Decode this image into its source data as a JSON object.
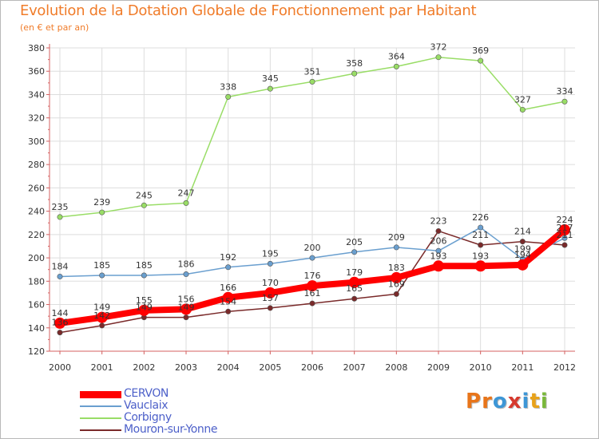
{
  "title": "Evolution de la Dotation Globale de Fonctionnement par Habitant",
  "subtitle": "(en € et par an)",
  "logo": {
    "text": "Proxiti",
    "colors": [
      "#e8751a",
      "#e8751a",
      "#3d96d6",
      "#d63a2e",
      "#3d96d6",
      "#e8a21a",
      "#7ab83a"
    ]
  },
  "colors": {
    "axis": "#d46060",
    "grid": "#dddddd",
    "label_text": "#333333"
  },
  "chart_data": {
    "type": "line",
    "title": "Evolution de la Dotation Globale de Fonctionnement par Habitant",
    "subtitle": "(en € et par an)",
    "x": [
      "2000",
      "2001",
      "2002",
      "2003",
      "2004",
      "2005",
      "2006",
      "2007",
      "2008",
      "2009",
      "2010",
      "2011",
      "2012"
    ],
    "ylim": [
      120,
      380
    ],
    "yticks": [
      120,
      140,
      160,
      180,
      200,
      220,
      240,
      260,
      280,
      300,
      320,
      340,
      360,
      380
    ],
    "grid": true,
    "legend_position": "bottom-left",
    "series": [
      {
        "name": "CERVON",
        "color": "#ff0000",
        "values": [
          144,
          149,
          155,
          156,
          166,
          170,
          176,
          179,
          183,
          193,
          193,
          194,
          224
        ],
        "labels": [
          "144",
          "149",
          "155",
          "156",
          "166",
          "170",
          "176",
          "179",
          "183",
          "193",
          "193",
          "194",
          "224"
        ]
      },
      {
        "name": "Vauclaix",
        "color": "#6a9fcf",
        "values": [
          184,
          185,
          185,
          186,
          192,
          195,
          200,
          205,
          209,
          206,
          226,
          199,
          217
        ],
        "labels": [
          "184",
          "185",
          "185",
          "186",
          "192",
          "195",
          "200",
          "205",
          "209",
          "206",
          "226",
          "199",
          "217"
        ]
      },
      {
        "name": "Corbigny",
        "color": "#99dd66",
        "values": [
          235,
          239,
          245,
          247,
          338,
          345,
          351,
          358,
          364,
          372,
          369,
          327,
          334
        ],
        "labels": [
          "235",
          "239",
          "245",
          "247",
          "338",
          "345",
          "351",
          "358",
          "364",
          "372",
          "369",
          "327",
          "334"
        ]
      },
      {
        "name": "Mouron-sur-Yonne",
        "color": "#7a2a2a",
        "values": [
          136,
          142,
          149,
          149,
          154,
          157,
          161,
          165,
          169,
          223,
          211,
          214,
          211
        ],
        "labels": [
          "136",
          "142",
          "149",
          "149",
          "154",
          "157",
          "161",
          "165",
          "169",
          "223",
          "211",
          "214",
          "211"
        ]
      }
    ]
  }
}
